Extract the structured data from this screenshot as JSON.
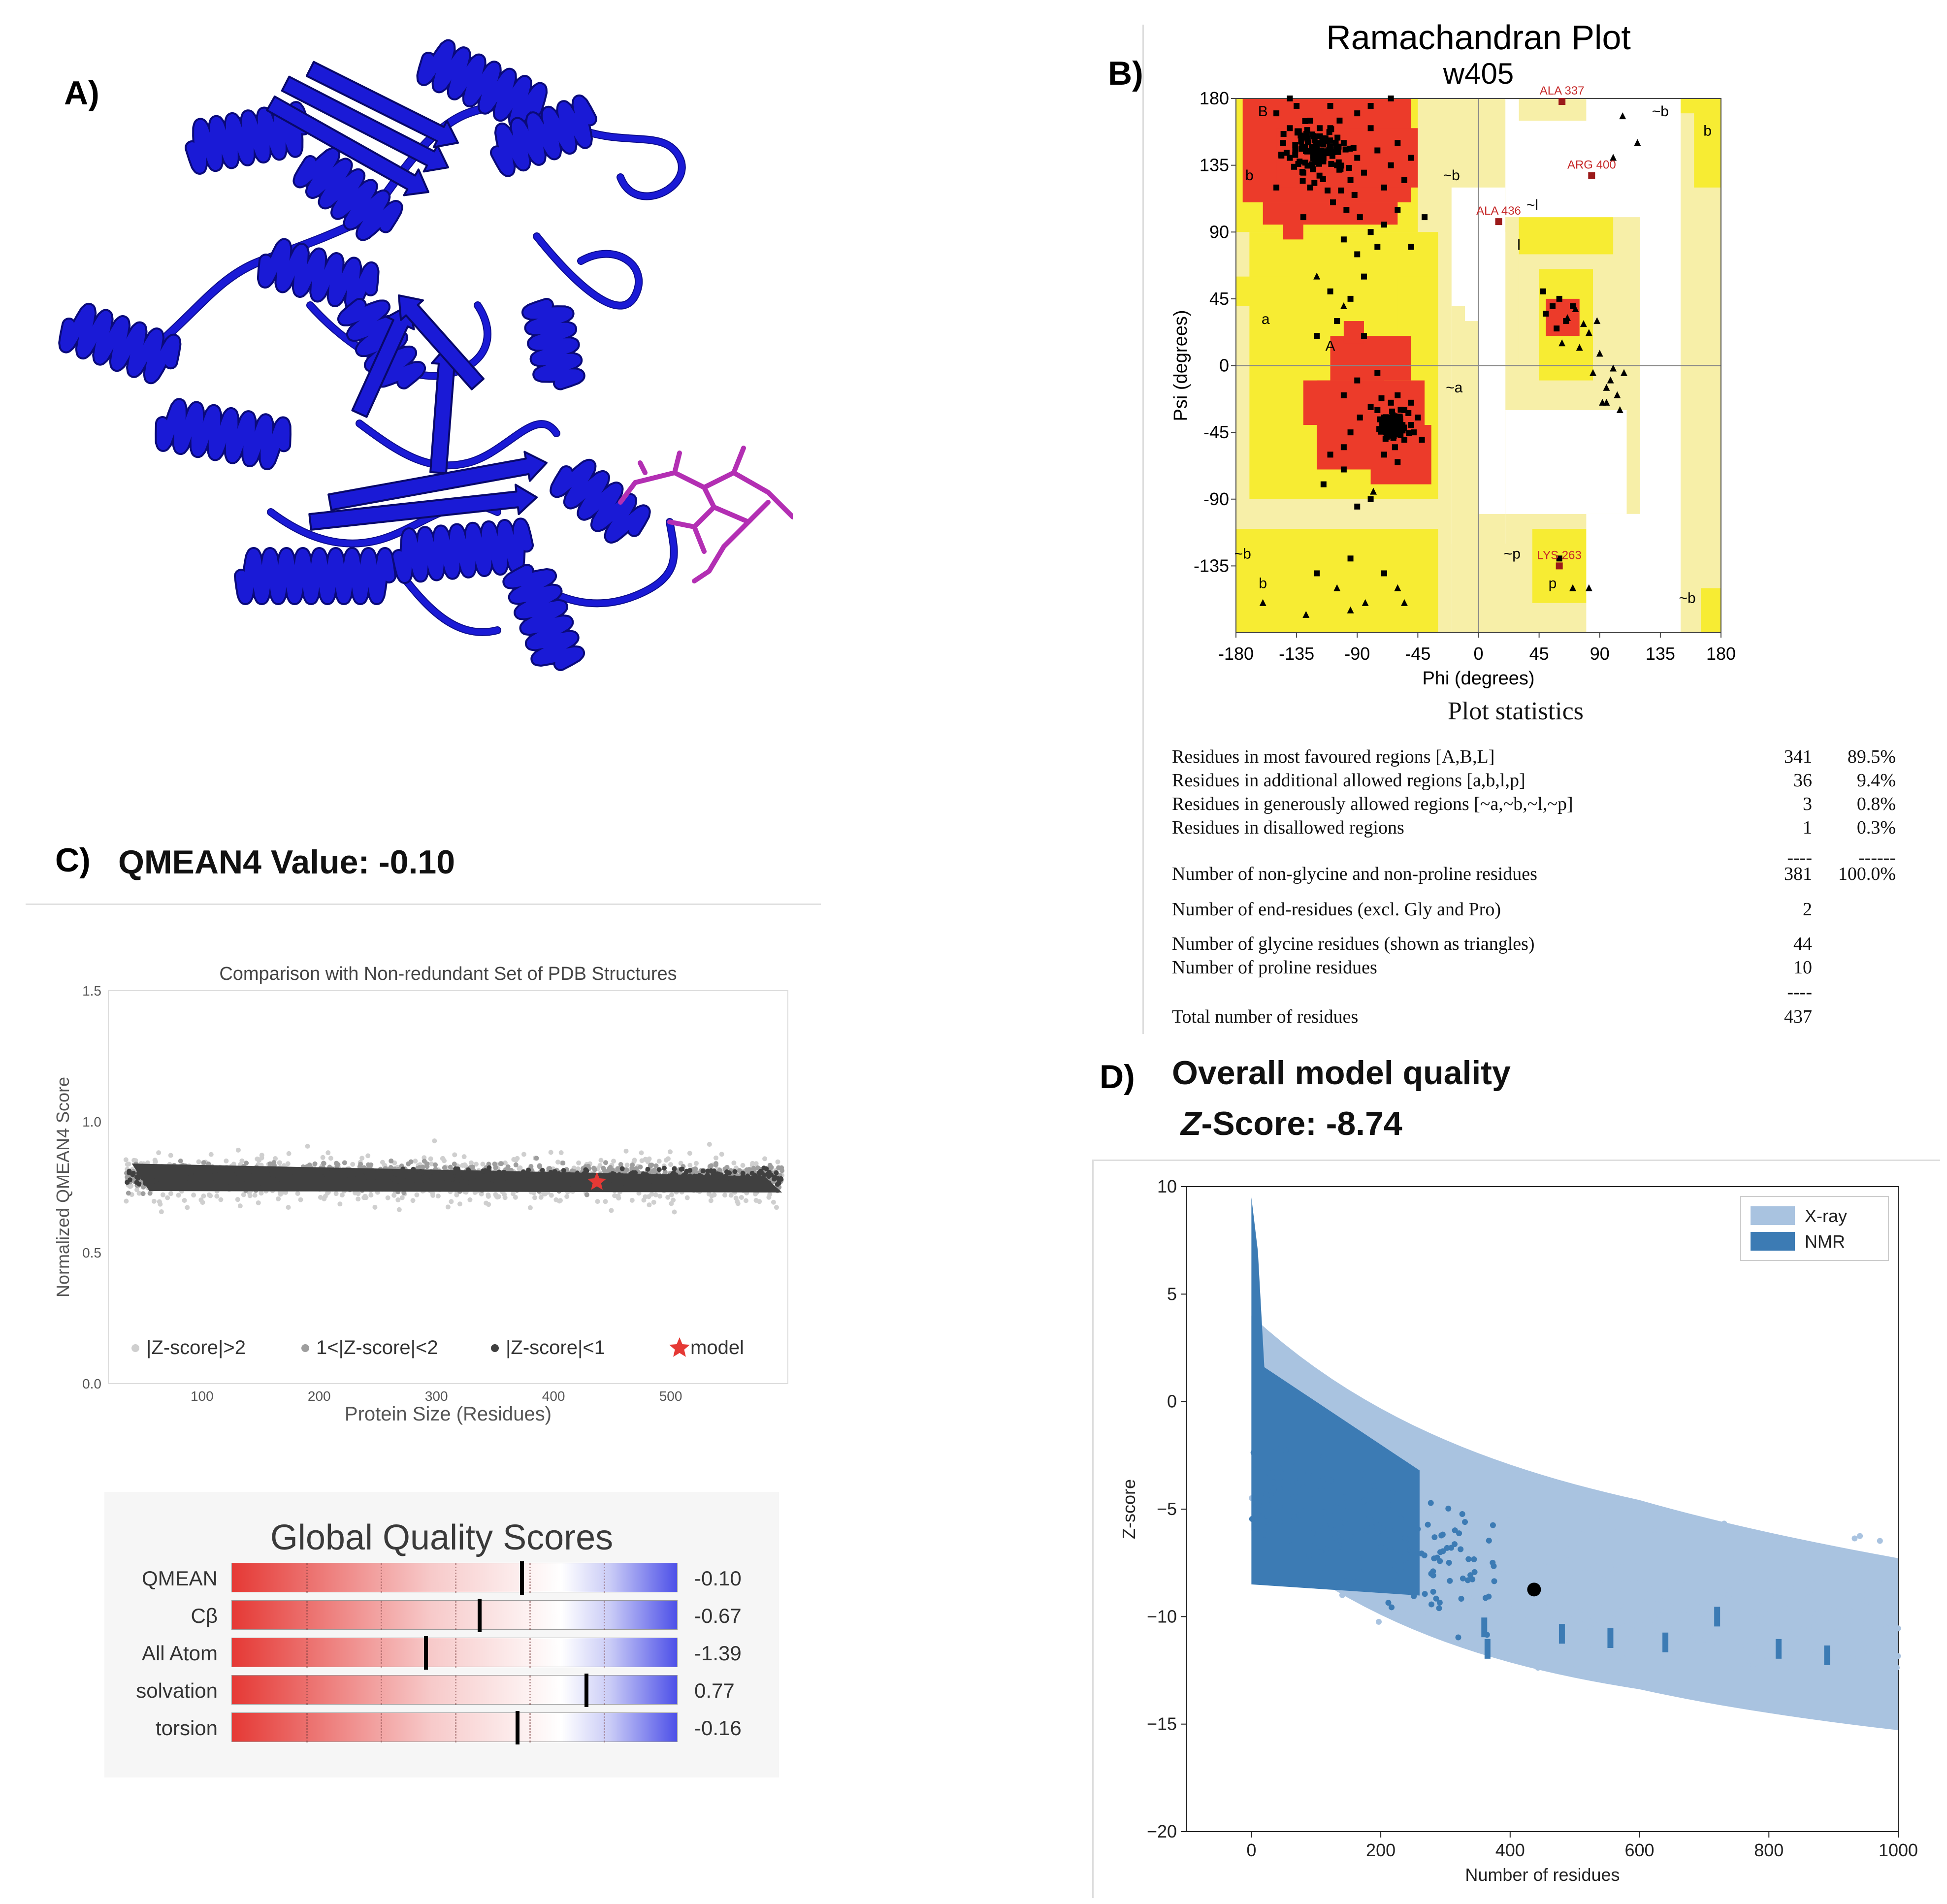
{
  "panels": {
    "a": {
      "label": "A)"
    },
    "b": {
      "label": "B)"
    },
    "c": {
      "label": "C)",
      "heading": "QMEAN4 Value: -0.10"
    },
    "d": {
      "label": "D)",
      "heading_line1": "Overall model quality",
      "heading_line2_italic": "Z",
      "heading_line2_rest": "-Score: -8.74"
    }
  },
  "colors": {
    "protein": "#1a1ad6",
    "ligand": "#b32fb3",
    "favoured": "#ec3b2a",
    "allowed": "#f7ec33",
    "generous": "#f7efa8",
    "xray": "#a9c3e0",
    "nmr": "#3c7bb4",
    "qmean_dark": "#404040",
    "qmean_mid": "#9e9e9e",
    "qmean_light": "#cfcfcf",
    "model_star": "#e53935"
  },
  "icons": {
    "structure": "protein-ribbon-structure",
    "model_marker": "star-icon"
  },
  "chart_data": [
    {
      "id": "ramachandran",
      "type": "scatter",
      "title": "Ramachandran Plot",
      "subtitle": "w405",
      "xlabel": "Phi (degrees)",
      "ylabel": "Psi (degrees)",
      "xlim": [
        -180,
        180
      ],
      "ylim": [
        -180,
        180
      ],
      "xticks": [
        -180,
        -135,
        -90,
        -45,
        0,
        45,
        90,
        135,
        180
      ],
      "yticks": [
        180,
        135,
        90,
        45,
        0,
        -45,
        -90,
        -135
      ],
      "region_labels": [
        {
          "text": "B",
          "phi": -160,
          "psi": 168
        },
        {
          "text": "b",
          "phi": -170,
          "psi": 125
        },
        {
          "text": "~b",
          "phi": -20,
          "psi": 125
        },
        {
          "text": "a",
          "phi": -158,
          "psi": 28
        },
        {
          "text": "A",
          "phi": -110,
          "psi": 10
        },
        {
          "text": "~a",
          "phi": -18,
          "psi": -18
        },
        {
          "text": "~l",
          "phi": 40,
          "psi": 105
        },
        {
          "text": "l",
          "phi": 30,
          "psi": 78
        },
        {
          "text": "~b",
          "phi": 135,
          "psi": 168
        },
        {
          "text": "b",
          "phi": 170,
          "psi": 155
        },
        {
          "text": "~b",
          "phi": -175,
          "psi": -130
        },
        {
          "text": "b",
          "phi": -160,
          "psi": -150
        },
        {
          "text": "~p",
          "phi": 25,
          "psi": -130
        },
        {
          "text": "p",
          "phi": 55,
          "psi": -150
        },
        {
          "text": "~b",
          "phi": 155,
          "psi": -160
        }
      ],
      "labelled_residues": [
        {
          "name": "ALA 337",
          "phi": 62,
          "psi": 178
        },
        {
          "name": "ARG 400",
          "phi": 84,
          "psi": 128
        },
        {
          "name": "ALA 436",
          "phi": 15,
          "psi": 97
        },
        {
          "name": "LYS 263",
          "phi": 60,
          "psi": -135
        }
      ],
      "glycine_points": [
        [
          107,
          168
        ],
        [
          100,
          140
        ],
        [
          118,
          150
        ],
        [
          72,
          38
        ],
        [
          75,
          12
        ],
        [
          82,
          22
        ],
        [
          85,
          -5
        ],
        [
          90,
          8
        ],
        [
          95,
          -15
        ],
        [
          100,
          -2
        ],
        [
          103,
          -20
        ],
        [
          105,
          -30
        ],
        [
          98,
          -10
        ],
        [
          92,
          -25
        ],
        [
          78,
          28
        ],
        [
          88,
          30
        ],
        [
          70,
          -150
        ],
        [
          -160,
          -160
        ],
        [
          -95,
          -165
        ],
        [
          -84,
          -160
        ],
        [
          -128,
          -168
        ],
        [
          -105,
          -150
        ],
        [
          -55,
          -160
        ],
        [
          -78,
          -85
        ],
        [
          -120,
          60
        ],
        [
          -100,
          40
        ],
        [
          82,
          -150
        ],
        [
          -60,
          -150
        ],
        [
          108,
          -5
        ],
        [
          95,
          -25
        ],
        [
          62,
          15
        ],
        [
          66,
          32
        ]
      ],
      "points": [
        [
          -150,
          170
        ],
        [
          -140,
          160
        ],
        [
          -145,
          150
        ],
        [
          -132,
          155
        ],
        [
          -125,
          165
        ],
        [
          -120,
          150
        ],
        [
          -115,
          140
        ],
        [
          -110,
          160
        ],
        [
          -105,
          135
        ],
        [
          -100,
          150
        ],
        [
          -95,
          125
        ],
        [
          -90,
          140
        ],
        [
          -85,
          130
        ],
        [
          -80,
          160
        ],
        [
          -75,
          145
        ],
        [
          -70,
          120
        ],
        [
          -65,
          135
        ],
        [
          -60,
          150
        ],
        [
          -55,
          125
        ],
        [
          -50,
          140
        ],
        [
          -140,
          140
        ],
        [
          -130,
          130
        ],
        [
          -125,
          120
        ],
        [
          -118,
          128
        ],
        [
          -112,
          118
        ],
        [
          -108,
          110
        ],
        [
          -102,
          118
        ],
        [
          -98,
          105
        ],
        [
          -92,
          115
        ],
        [
          -88,
          100
        ],
        [
          -135,
          175
        ],
        [
          -110,
          175
        ],
        [
          -90,
          170
        ],
        [
          -80,
          175
        ],
        [
          -100,
          85
        ],
        [
          -90,
          75
        ],
        [
          -80,
          90
        ],
        [
          -75,
          80
        ],
        [
          -85,
          60
        ],
        [
          -95,
          45
        ],
        [
          -110,
          50
        ],
        [
          -105,
          30
        ],
        [
          -120,
          20
        ],
        [
          -80,
          -90
        ],
        [
          -90,
          -95
        ],
        [
          -115,
          -80
        ],
        [
          -100,
          -70
        ],
        [
          -60,
          -20
        ],
        [
          -65,
          -25
        ],
        [
          -55,
          -30
        ],
        [
          -70,
          -35
        ],
        [
          -50,
          -40
        ],
        [
          -60,
          -45
        ],
        [
          -45,
          -35
        ],
        [
          -55,
          -50
        ],
        [
          -65,
          -40
        ],
        [
          -75,
          -30
        ],
        [
          -50,
          -25
        ],
        [
          -48,
          -45
        ],
        [
          -62,
          -55
        ],
        [
          -58,
          -38
        ],
        [
          -52,
          -32
        ],
        [
          -68,
          -48
        ],
        [
          -42,
          -50
        ],
        [
          -72,
          -22
        ],
        [
          -80,
          -28
        ],
        [
          -88,
          -35
        ],
        [
          -100,
          -20
        ],
        [
          -95,
          -45
        ],
        [
          55,
          40
        ],
        [
          50,
          35
        ],
        [
          60,
          45
        ],
        [
          58,
          25
        ],
        [
          65,
          30
        ],
        [
          70,
          40
        ],
        [
          48,
          50
        ],
        [
          -100,
          -55
        ],
        [
          -110,
          -60
        ],
        [
          -90,
          -10
        ],
        [
          -75,
          -5
        ],
        [
          -85,
          20
        ],
        [
          -70,
          -60
        ],
        [
          -60,
          -65
        ],
        [
          60,
          -130
        ],
        [
          -120,
          -140
        ],
        [
          -95,
          -130
        ],
        [
          -70,
          -140
        ],
        [
          -140,
          180
        ],
        [
          -65,
          180
        ],
        [
          -150,
          120
        ],
        [
          -130,
          100
        ],
        [
          -70,
          95
        ],
        [
          -60,
          105
        ],
        [
          -40,
          100
        ],
        [
          -50,
          80
        ]
      ]
    },
    {
      "id": "qmean_comparison",
      "type": "scatter",
      "title": "Comparison with Non-redundant Set of PDB Structures",
      "xlabel": "Protein Size (Residues)",
      "ylabel": "Normalized QMEAN4 Score",
      "xlim": [
        20,
        600
      ],
      "ylim": [
        0.0,
        1.5
      ],
      "xticks": [
        100,
        200,
        300,
        400,
        500
      ],
      "yticks": [
        0.0,
        0.5,
        1.0,
        1.5
      ],
      "legend": [
        "|Z-score|>2",
        "1<|Z-score|<2",
        "|Z-score|<1",
        "model"
      ],
      "model_point": {
        "x": 437,
        "y": 0.77
      }
    },
    {
      "id": "global_quality",
      "type": "bar",
      "title": "Global Quality Scores",
      "categories": [
        "QMEAN",
        "Cβ",
        "All Atom",
        "solvation",
        "torsion"
      ],
      "values": [
        -0.1,
        -0.67,
        -1.39,
        0.77,
        -0.16
      ],
      "value_labels": [
        "-0.10",
        "-0.67",
        "-1.39",
        "0.77",
        "-0.16"
      ],
      "range": [
        -4,
        2
      ]
    },
    {
      "id": "prosa_zscore",
      "type": "scatter",
      "xlabel": "Number of residues",
      "ylabel": "Z-score",
      "xlim": [
        -100,
        1000
      ],
      "ylim": [
        -20,
        10
      ],
      "xticks": [
        0,
        200,
        400,
        600,
        800,
        1000
      ],
      "yticks": [
        10,
        5,
        0,
        -5,
        -10,
        -15,
        -20
      ],
      "legend": [
        "X-ray",
        "NMR"
      ],
      "model_point": {
        "x": 437,
        "y": -8.74
      }
    }
  ],
  "stats": {
    "title": "Plot statistics",
    "rows": [
      {
        "label": "Residues in most favoured regions  [A,B,L]",
        "count": "341",
        "percent": "89.5%"
      },
      {
        "label": "Residues in additional allowed regions  [a,b,l,p]",
        "count": "36",
        "percent": "9.4%"
      },
      {
        "label": "Residues in generously allowed regions  [~a,~b,~l,~p]",
        "count": "3",
        "percent": "0.8%"
      },
      {
        "label": "Residues in disallowed regions",
        "count": "1",
        "percent": "0.3%"
      },
      {
        "label": "",
        "count": "----",
        "percent": "------"
      },
      {
        "label": "Number of non-glycine and non-proline residues",
        "count": "381",
        "percent": "100.0%"
      },
      {
        "label": "Number of end-residues (excl. Gly and Pro)",
        "count": "2",
        "percent": ""
      },
      {
        "label": "Number of glycine residues (shown as triangles)",
        "count": "44",
        "percent": ""
      },
      {
        "label": "Number of proline residues",
        "count": "10",
        "percent": ""
      },
      {
        "label": "",
        "count": "----",
        "percent": ""
      },
      {
        "label": "Total number of residues",
        "count": "437",
        "percent": ""
      }
    ]
  }
}
